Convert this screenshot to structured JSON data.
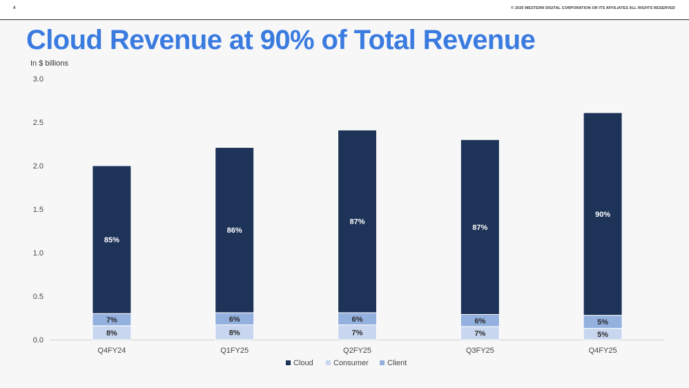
{
  "header": {
    "page_number": "4",
    "copyright": "© 2025 WESTERN DIGITAL CORPORATION OR ITS AFFILIATES  ALL RIGHTS RESERVED"
  },
  "title": "Cloud Revenue at 90% of Total Revenue",
  "colors": {
    "title": "#3a7be0",
    "cloud": "#1e3358",
    "consumer": "#c8d7ef",
    "client": "#93b0df"
  },
  "chart_data": {
    "type": "bar",
    "stacked": true,
    "ylabel": "In $ billions",
    "ylim": [
      0,
      3.0
    ],
    "yticks": [
      "0.0",
      "0.5",
      "1.0",
      "1.5",
      "2.0",
      "2.5",
      "3.0"
    ],
    "categories": [
      "Q4FY24",
      "Q1FY25",
      "Q2FY25",
      "Q3FY25",
      "Q4FY25"
    ],
    "totals": [
      2.0,
      2.2,
      2.4,
      2.3,
      2.6
    ],
    "series": [
      {
        "name": "Consumer",
        "values": [
          0.16,
          0.17,
          0.17,
          0.15,
          0.13
        ],
        "labels": [
          "8%",
          "8%",
          "7%",
          "7%",
          "5%"
        ]
      },
      {
        "name": "Client",
        "values": [
          0.14,
          0.14,
          0.14,
          0.14,
          0.15
        ],
        "labels": [
          "7%",
          "6%",
          "6%",
          "6%",
          "5%"
        ]
      },
      {
        "name": "Cloud",
        "values": [
          1.7,
          1.9,
          2.1,
          2.01,
          2.33
        ],
        "labels": [
          "85%",
          "86%",
          "87%",
          "87%",
          "90%"
        ]
      }
    ],
    "legend": {
      "position": "bottom",
      "entries": [
        "Cloud",
        "Consumer",
        "Client"
      ]
    },
    "grid": false
  }
}
